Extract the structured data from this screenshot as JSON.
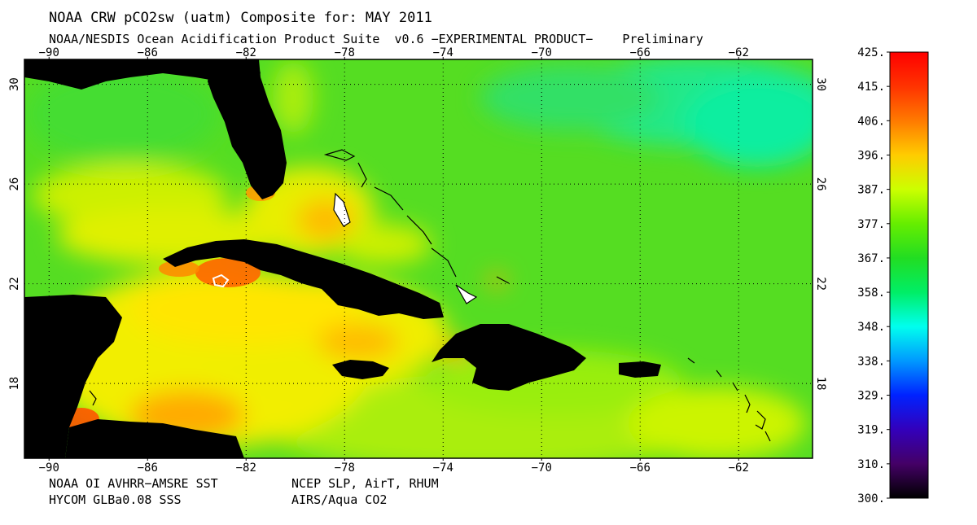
{
  "title": "NOAA CRW pCO2sw (uatm) Composite for: MAY 2011",
  "subtitle": "NOAA/NESDIS Ocean Acidification Product Suite  v0.6 −EXPERIMENTAL PRODUCT−    Preliminary",
  "credits": {
    "sst": "NOAA OI AVHRR−AMSRE SST",
    "met": "NCEP SLP, AirT, RHUM",
    "sss": "HYCOM GLBa0.08 SSS",
    "co2": "AIRS/Aqua CO2"
  },
  "map": {
    "lon_min": -91,
    "lon_max": -59,
    "lat_min": 15,
    "lat_max": 31,
    "lon_ticks": [
      "−90",
      "−86",
      "−82",
      "−78",
      "−74",
      "−70",
      "−66",
      "−62"
    ],
    "lon_tick_values": [
      -90,
      -86,
      -82,
      -78,
      -74,
      -70,
      -66,
      -62
    ],
    "lat_ticks": [
      "30",
      "26",
      "22",
      "18"
    ],
    "lat_tick_values": [
      30,
      26,
      22,
      18
    ],
    "land_color": "#000000",
    "grid": "dotted"
  },
  "colorbar": {
    "labels": [
      "425.",
      "415.",
      "406.",
      "396.",
      "387.",
      "377.",
      "367.",
      "358.",
      "348.",
      "338.",
      "329.",
      "319.",
      "310.",
      "300."
    ],
    "colors": [
      "#ff0000",
      "#ff3300",
      "#ff7a00",
      "#ffcc00",
      "#ccff00",
      "#66ee00",
      "#22dd22",
      "#00ee66",
      "#00ffee",
      "#0099ff",
      "#0022ff",
      "#3300bb",
      "#440066",
      "#000000"
    ]
  }
}
